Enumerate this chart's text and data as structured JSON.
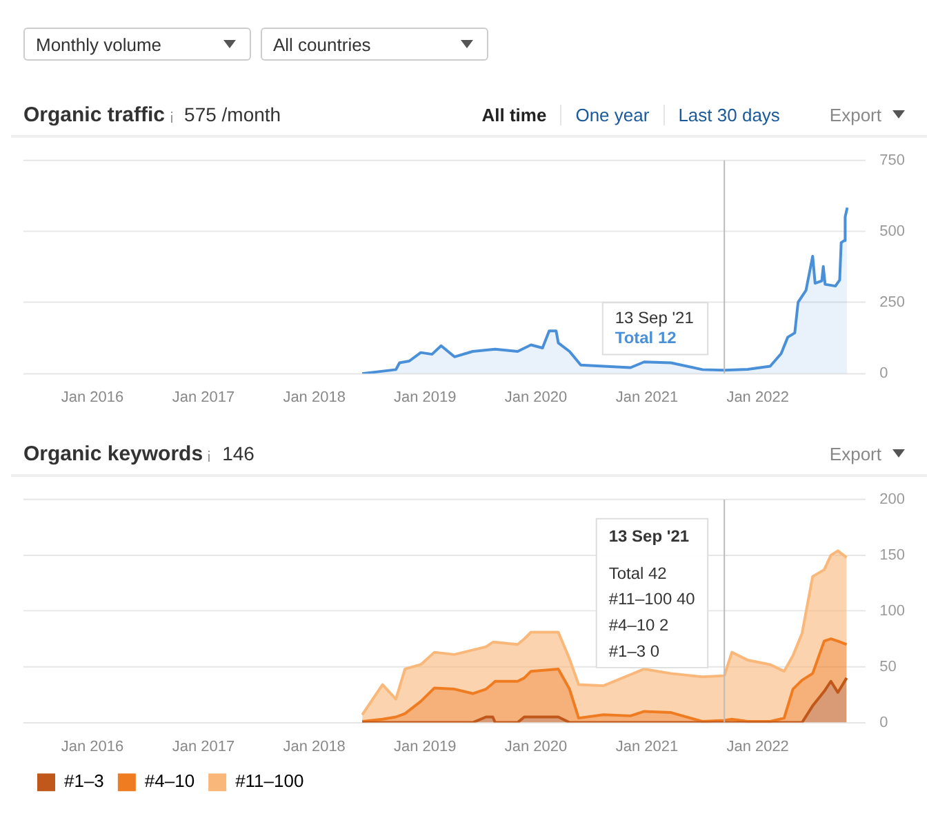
{
  "chart_data": [
    {
      "type": "other",
      "annotations": [
        "Monthly volume",
        "All countries"
      ]
    },
    {
      "type": "other",
      "annotations": [
        "All time",
        "One year",
        "Last 30 days",
        "Export"
      ]
    },
    {
      "type": "area",
      "title": "Organic traffic",
      "subtitle": "575 /month",
      "x": [
        "2018-06-08",
        "2018-09-27",
        "2018-10-09",
        "2018-11-10",
        "2018-12-18",
        "2019-01-24",
        "2019-02-23",
        "2019-04-08",
        "2019-06-07",
        "2019-08-20",
        "2019-11-02",
        "2019-12-16",
        "2020-01-23",
        "2020-02-14",
        "2020-03-08",
        "2020-03-15",
        "2020-04-21",
        "2020-05-28",
        "2020-08-11",
        "2020-11-08",
        "2020-12-23",
        "2021-03-21",
        "2021-07-03",
        "2021-09-13",
        "2021-11-29",
        "2022-02-11",
        "2022-03-19",
        "2022-04-10",
        "2022-05-03",
        "2022-05-14",
        "2022-06-09",
        "2022-07-01",
        "2022-07-09",
        "2022-07-31",
        "2022-08-05",
        "2022-08-11",
        "2022-09-14",
        "2022-09-28",
        "2022-10-03",
        "2022-10-13",
        "2022-10-16",
        "2022-10-23"
      ],
      "series": [
        {
          "color": "#4a90d9",
          "values": [
            0,
            14,
            38,
            44,
            74,
            68,
            98,
            59,
            78,
            86,
            78,
            101,
            90,
            150,
            150,
            108,
            78,
            30,
            26,
            21,
            41,
            38,
            14,
            12,
            15,
            26,
            70,
            128,
            143,
            251,
            293,
            413,
            318,
            326,
            377,
            314,
            308,
            329,
            461,
            468,
            551,
            584
          ]
        }
      ],
      "xlim": [
        "2015-05-19",
        "2022-12-23"
      ],
      "xticks": [
        {
          "value": "2016-01-01",
          "label": "Jan 2016"
        },
        {
          "value": "2017-01-01",
          "label": "Jan 2017"
        },
        {
          "value": "2018-01-01",
          "label": "Jan 2018"
        },
        {
          "value": "2019-01-01",
          "label": "Jan 2019"
        },
        {
          "value": "2020-01-01",
          "label": "Jan 2020"
        },
        {
          "value": "2021-01-01",
          "label": "Jan 2021"
        },
        {
          "value": "2022-01-01",
          "label": "Jan 2022"
        }
      ],
      "ylim": [
        0,
        750
      ],
      "yticks": [
        0,
        250,
        500,
        750
      ],
      "grid": "y",
      "legend": false,
      "ref_lines": [
        {
          "axis": "x",
          "value": "2021-09-13",
          "color": "#bbbbbb"
        }
      ],
      "annotations": [
        "13 Sep '21",
        "Total 12"
      ]
    },
    {
      "type": "other",
      "annotations": [
        "Export"
      ]
    },
    {
      "type": "area",
      "stacked": true,
      "title": "Organic keywords",
      "subtitle": "146",
      "x": [
        "2018-06-08",
        "2018-08-14",
        "2018-09-27",
        "2018-10-27",
        "2018-12-18",
        "2019-02-01",
        "2019-04-08",
        "2019-06-07",
        "2019-07-21",
        "2019-08-12",
        "2019-08-20",
        "2019-11-02",
        "2019-11-24",
        "2019-12-16",
        "2020-03-15",
        "2020-04-21",
        "2020-05-21",
        "2020-08-11",
        "2020-11-08",
        "2020-12-23",
        "2021-03-21",
        "2021-07-03",
        "2021-09-13",
        "2021-10-08",
        "2021-11-29",
        "2022-02-11",
        "2022-03-29",
        "2022-04-27",
        "2022-05-27",
        "2022-07-01",
        "2022-08-08",
        "2022-08-30",
        "2022-09-22",
        "2022-10-21"
      ],
      "series": [
        {
          "name": "#1–3",
          "color": "#c0581b",
          "values": [
            0,
            0,
            0,
            0,
            0,
            0,
            0,
            0,
            5,
            5,
            0,
            0,
            5,
            5,
            5,
            0,
            0,
            0,
            0,
            0,
            0,
            0,
            0,
            0,
            0,
            0,
            0,
            0,
            0,
            15,
            28,
            37,
            27,
            40
          ]
        },
        {
          "name": "#4–10",
          "color": "#f07c22",
          "values": [
            1,
            3,
            5,
            8,
            19,
            31,
            30,
            26,
            25,
            30,
            37,
            37,
            35,
            41,
            43,
            30,
            4,
            7,
            6,
            10,
            9,
            1,
            2,
            3,
            1,
            1,
            4,
            30,
            38,
            29,
            45,
            38,
            46,
            30
          ]
        },
        {
          "name": "#11–100",
          "color": "#f9b77a",
          "values": [
            6,
            31,
            16,
            40,
            33,
            32,
            31,
            39,
            38,
            37,
            35,
            33,
            35,
            35,
            33,
            27,
            30,
            26,
            37,
            38,
            35,
            40,
            40,
            60,
            55,
            51,
            42,
            30,
            42,
            87,
            64,
            75,
            81,
            78
          ]
        }
      ],
      "xlim": [
        "2015-05-19",
        "2022-12-23"
      ],
      "xticks": [
        {
          "value": "2016-01-01",
          "label": "Jan 2016"
        },
        {
          "value": "2017-01-01",
          "label": "Jan 2017"
        },
        {
          "value": "2018-01-01",
          "label": "Jan 2018"
        },
        {
          "value": "2019-01-01",
          "label": "Jan 2019"
        },
        {
          "value": "2020-01-01",
          "label": "Jan 2020"
        },
        {
          "value": "2021-01-01",
          "label": "Jan 2021"
        },
        {
          "value": "2022-01-01",
          "label": "Jan 2022"
        }
      ],
      "ylim": [
        0,
        200
      ],
      "yticks": [
        0,
        50,
        100,
        150,
        200
      ],
      "grid": "y",
      "legend": "bottom left",
      "ref_lines": [
        {
          "axis": "x",
          "value": "2021-09-13",
          "color": "#bbbbbb"
        }
      ],
      "annotations": [
        "13 Sep '21",
        "Total 42",
        "#11–100 40",
        "#4–10 2",
        "#1–3 0"
      ]
    }
  ]
}
